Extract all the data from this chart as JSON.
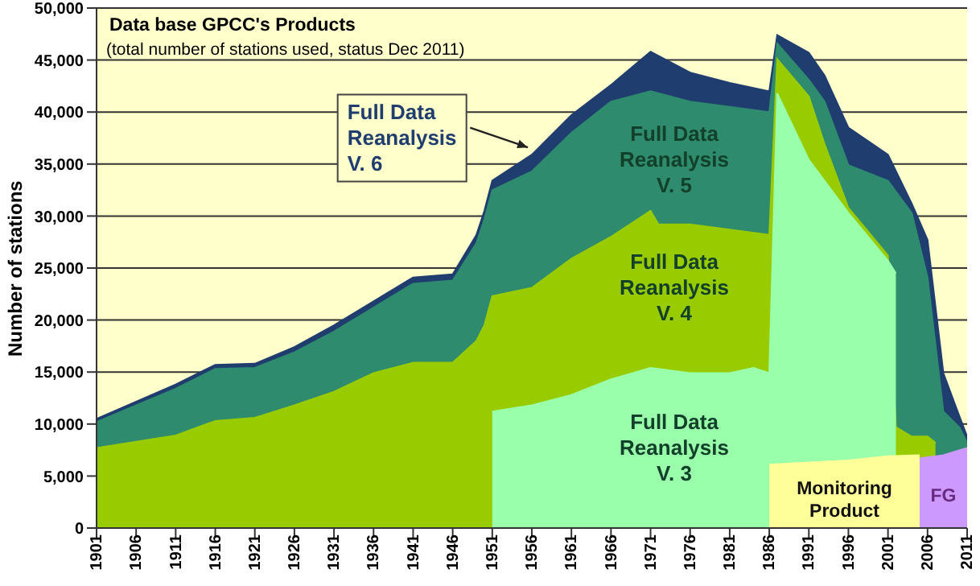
{
  "chart_data": {
    "type": "area",
    "title": "Data base GPCC's Products",
    "subtitle": "(total number of stations used, status Dec 2011)",
    "ylabel": "Number of stations",
    "xlim": [
      1901,
      2011
    ],
    "xticks": [
      1901,
      1906,
      1911,
      1916,
      1921,
      1926,
      1931,
      1936,
      1941,
      1946,
      1951,
      1956,
      1961,
      1966,
      1971,
      1976,
      1981,
      1986,
      1991,
      1996,
      2001,
      2006,
      2011
    ],
    "ylim": [
      0,
      50000
    ],
    "yticks": [
      {
        "value": 0,
        "label": "0"
      },
      {
        "value": 5000,
        "label": "5,000"
      },
      {
        "value": 10000,
        "label": "10,000"
      },
      {
        "value": 15000,
        "label": "15,000"
      },
      {
        "value": 20000,
        "label": "20,000"
      },
      {
        "value": 25000,
        "label": "25,000"
      },
      {
        "value": 30000,
        "label": "30,000"
      },
      {
        "value": 35000,
        "label": "35,000"
      },
      {
        "value": 40000,
        "label": "40,000"
      },
      {
        "value": 45000,
        "label": "45,000"
      },
      {
        "value": 50000,
        "label": "50,000"
      }
    ],
    "grid": "y",
    "series": [
      {
        "name": "Full Data Reanalysis V. 6",
        "color": "#1f3d6e",
        "x": [
          1901,
          1911,
          1916,
          1921,
          1926,
          1931,
          1936,
          1941,
          1946,
          1949,
          1950,
          1951,
          1956,
          1961,
          1966,
          1971,
          1976,
          1981,
          1986,
          1987,
          1991,
          1993,
          1996,
          2001,
          2004,
          2006,
          2008,
          2010,
          2011
        ],
        "values": [
          10500,
          13800,
          15700,
          15800,
          17400,
          19500,
          21800,
          24100,
          24400,
          28200,
          30500,
          33400,
          35900,
          39700,
          42600,
          45800,
          43800,
          42800,
          42000,
          47400,
          45700,
          43500,
          38500,
          35900,
          31200,
          27700,
          14900,
          10800,
          8800
        ]
      },
      {
        "name": "Full Data Reanalysis V. 5",
        "color": "#2e8b6e",
        "x": [
          1901,
          1911,
          1916,
          1921,
          1926,
          1931,
          1936,
          1941,
          1946,
          1949,
          1950,
          1951,
          1956,
          1961,
          1966,
          1971,
          1976,
          1981,
          1986,
          1987,
          1991,
          1993,
          1996,
          2001,
          2004,
          2006,
          2008,
          2010,
          2011
        ],
        "values": [
          10200,
          13400,
          15300,
          15400,
          16900,
          18900,
          21200,
          23500,
          23800,
          27400,
          29700,
          32500,
          34300,
          38000,
          41000,
          42000,
          41000,
          40500,
          40000,
          46600,
          43100,
          41000,
          34900,
          33400,
          30300,
          24100,
          11200,
          9700,
          8200
        ]
      },
      {
        "name": "Full Data Reanalysis V. 4",
        "color": "#99cc00",
        "x": [
          1901,
          1911,
          1916,
          1921,
          1926,
          1931,
          1936,
          1941,
          1946,
          1949,
          1950,
          1951,
          1956,
          1961,
          1966,
          1971,
          1972,
          1976,
          1981,
          1986,
          1987,
          1991,
          1993,
          1996,
          2001,
          2002,
          2004,
          2006,
          2007
        ],
        "values": [
          7700,
          8900,
          10300,
          10600,
          11800,
          13100,
          14900,
          15900,
          15900,
          18000,
          19500,
          22300,
          23100,
          25900,
          28000,
          30500,
          29200,
          29200,
          28700,
          28200,
          45100,
          41500,
          36900,
          30800,
          26200,
          9700,
          8800,
          8800,
          8200
        ]
      },
      {
        "name": "Full Data Reanalysis V. 3",
        "color": "#99ffaa",
        "x": [
          1951,
          1956,
          1961,
          1966,
          1971,
          1976,
          1981,
          1984,
          1986,
          1987,
          1991,
          1996,
          2001,
          2002
        ],
        "values": [
          11200,
          11800,
          12800,
          14300,
          15400,
          14900,
          14900,
          15400,
          14900,
          41800,
          35400,
          30300,
          25700,
          24500
        ]
      },
      {
        "name": "Monitoring Product",
        "color": "#ffff99",
        "x": [
          1986,
          1991,
          1996,
          2001,
          2005
        ],
        "values": [
          6100,
          6300,
          6500,
          6900,
          7000
        ]
      },
      {
        "name": "FG",
        "color": "#cc99ff",
        "x": [
          2005,
          2008,
          2011
        ],
        "values": [
          6700,
          7000,
          7700
        ]
      }
    ]
  }
}
